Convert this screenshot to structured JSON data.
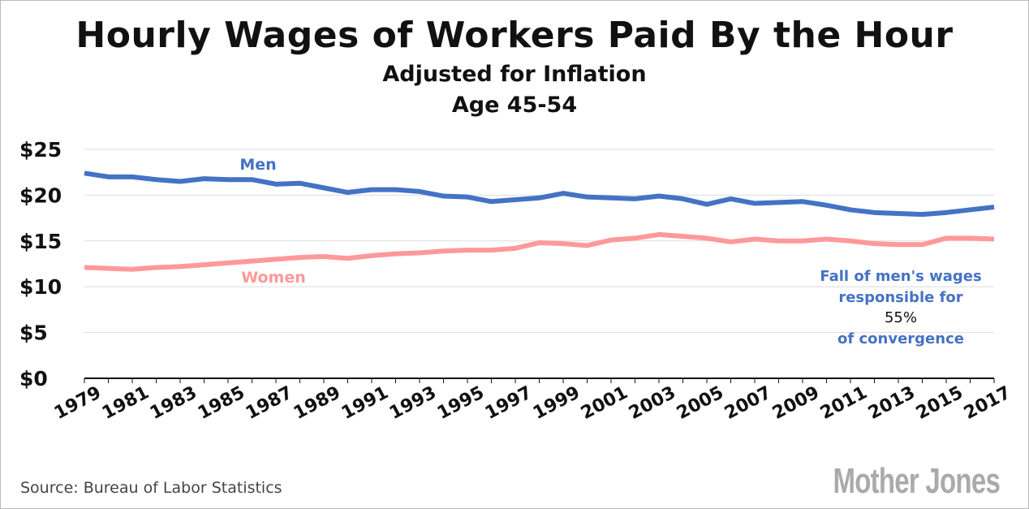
{
  "chart_data": {
    "type": "line",
    "title": "Hourly Wages of Workers Paid By the Hour",
    "subtitle": [
      "Adjusted for Inflation",
      "Age 45-54"
    ],
    "xlabel": "",
    "ylabel": "",
    "ylim": [
      0,
      25
    ],
    "y_ticks": [
      "$0",
      "$5",
      "$10",
      "$15",
      "$20",
      "$25"
    ],
    "x_tick_labels": [
      "1979",
      "1981",
      "1983",
      "1985",
      "1987",
      "1989",
      "1991",
      "1993",
      "1995",
      "1997",
      "1999",
      "2001",
      "2003",
      "2005",
      "2007",
      "2009",
      "2011",
      "2013",
      "2015",
      "2017"
    ],
    "x": [
      1979,
      1980,
      1981,
      1982,
      1983,
      1984,
      1985,
      1986,
      1987,
      1988,
      1989,
      1990,
      1991,
      1992,
      1993,
      1994,
      1995,
      1996,
      1997,
      1998,
      1999,
      2000,
      2001,
      2002,
      2003,
      2004,
      2005,
      2006,
      2007,
      2008,
      2009,
      2010,
      2011,
      2012,
      2013,
      2014,
      2015,
      2016,
      2017
    ],
    "series": [
      {
        "name": "Men",
        "color": "#4472c4",
        "values": [
          22.4,
          22.0,
          22.0,
          21.7,
          21.5,
          21.8,
          21.7,
          21.7,
          21.2,
          21.3,
          20.8,
          20.3,
          20.6,
          20.6,
          20.4,
          19.9,
          19.8,
          19.3,
          19.5,
          19.7,
          20.2,
          19.8,
          19.7,
          19.6,
          19.9,
          19.6,
          19.0,
          19.6,
          19.1,
          19.2,
          19.3,
          18.9,
          18.4,
          18.1,
          18.0,
          17.9,
          18.1,
          18.4,
          18.7
        ]
      },
      {
        "name": "Women",
        "color": "#ff9999",
        "values": [
          12.1,
          12.0,
          11.9,
          12.1,
          12.2,
          12.4,
          12.6,
          12.8,
          13.0,
          13.2,
          13.3,
          13.1,
          13.4,
          13.6,
          13.7,
          13.9,
          14.0,
          14.0,
          14.2,
          14.8,
          14.7,
          14.5,
          15.1,
          15.3,
          15.7,
          15.5,
          15.3,
          14.9,
          15.2,
          15.0,
          15.0,
          15.2,
          15.0,
          14.7,
          14.6,
          14.6,
          15.3,
          15.3,
          15.2
        ]
      }
    ],
    "grid": true,
    "annotation": {
      "line1": "Fall of men's wages",
      "line2": "responsible for",
      "value": "55%",
      "line3": "of convergence"
    }
  },
  "source": "Source: Bureau of Labor Statistics",
  "logo": "Mother Jones"
}
